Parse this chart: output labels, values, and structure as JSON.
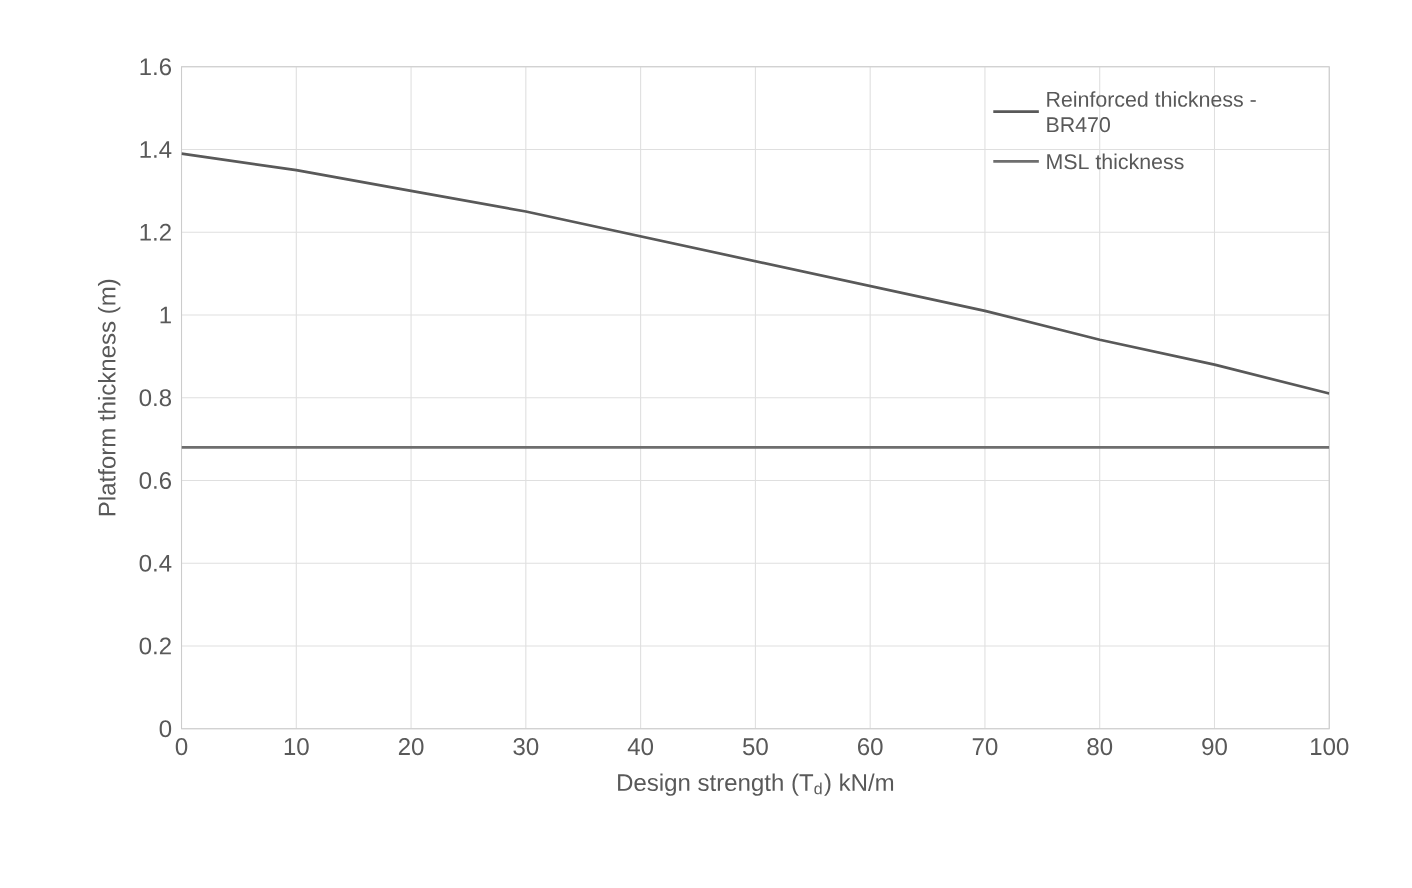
{
  "chart_data": {
    "type": "line",
    "xlabel": "Design strength (T$_{d}$) kN/m",
    "ylabel": "Platform thickness (m)",
    "x": [
      0,
      10,
      20,
      30,
      40,
      50,
      60,
      70,
      80,
      90,
      100
    ],
    "series": [
      {
        "name": "Reinforced thickness - BR470",
        "color": "#595959",
        "values": [
          1.39,
          1.35,
          1.3,
          1.25,
          1.19,
          1.13,
          1.07,
          1.01,
          0.94,
          0.88,
          0.81
        ]
      },
      {
        "name": "MSL thickness",
        "color": "#6e6e6e",
        "values": [
          0.68,
          0.68,
          0.68,
          0.68,
          0.68,
          0.68,
          0.68,
          0.68,
          0.68,
          0.68,
          0.68
        ]
      }
    ],
    "xlim": [
      0,
      100
    ],
    "ylim": [
      0,
      1.6
    ],
    "xticks": [
      0,
      10,
      20,
      30,
      40,
      50,
      60,
      70,
      80,
      90,
      100
    ],
    "yticks": [
      0,
      0.2,
      0.4,
      0.6,
      0.8,
      1,
      1.2,
      1.4,
      1.6
    ],
    "grid": true,
    "legend": "top right",
    "marker": "none",
    "line_style": "solid"
  }
}
